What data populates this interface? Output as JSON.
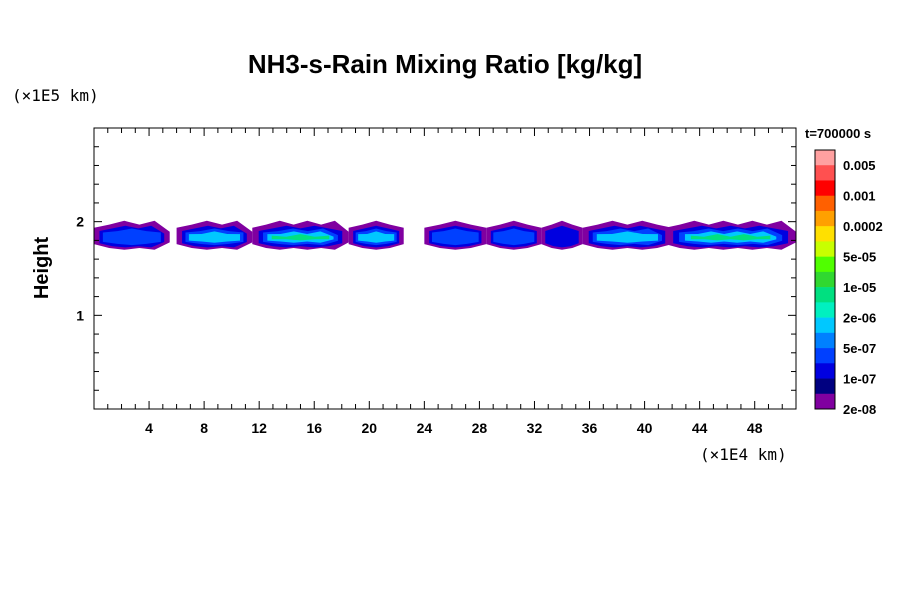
{
  "chart_data": {
    "type": "heatmap",
    "title": "NH3-s-Rain Mixing Ratio [kg/kg]",
    "ylabel": "Height",
    "xunit": "(×1E4 km)",
    "yunit": "(×1E5 km)",
    "time_label": "t=700000 s",
    "xlim": [
      0,
      51
    ],
    "ylim": [
      0,
      3
    ],
    "xticks": [
      "4",
      "8",
      "12",
      "16",
      "20",
      "24",
      "28",
      "32",
      "36",
      "40",
      "44",
      "48"
    ],
    "yticks": [
      "1",
      "2"
    ],
    "colorbar": {
      "labels": [
        "0.005",
        "0.001",
        "0.0002",
        "5e-05",
        "1e-05",
        "2e-06",
        "5e-07",
        "1e-07",
        "2e-08"
      ],
      "colors": [
        "#ffa0a0",
        "#ff5050",
        "#ff0000",
        "#ff6000",
        "#ffa000",
        "#ffe000",
        "#c8ff00",
        "#50ff00",
        "#30d830",
        "#00e080",
        "#00f0c0",
        "#00c8ff",
        "#0080ff",
        "#0040ff",
        "#0000e0",
        "#000080",
        "#8000a0"
      ]
    },
    "layer": {
      "height_top": 2.0,
      "height_bottom": 1.7,
      "peak_height": 1.83,
      "peak_value": "2e-05",
      "peak_x": 45
    },
    "cells": [
      {
        "x0": 0,
        "x1": 5.5,
        "level": 3
      },
      {
        "x0": 6,
        "x1": 11.5,
        "level": 4
      },
      {
        "x0": 11.5,
        "x1": 18.5,
        "level": 5
      },
      {
        "x0": 18.5,
        "x1": 22.5,
        "level": 4
      },
      {
        "x0": 24,
        "x1": 28.5,
        "level": 3
      },
      {
        "x0": 28.5,
        "x1": 32.5,
        "level": 3
      },
      {
        "x0": 32.5,
        "x1": 35.5,
        "level": 2
      },
      {
        "x0": 35.5,
        "x1": 42,
        "level": 4
      },
      {
        "x0": 41.5,
        "x1": 51,
        "level": 6
      }
    ]
  }
}
